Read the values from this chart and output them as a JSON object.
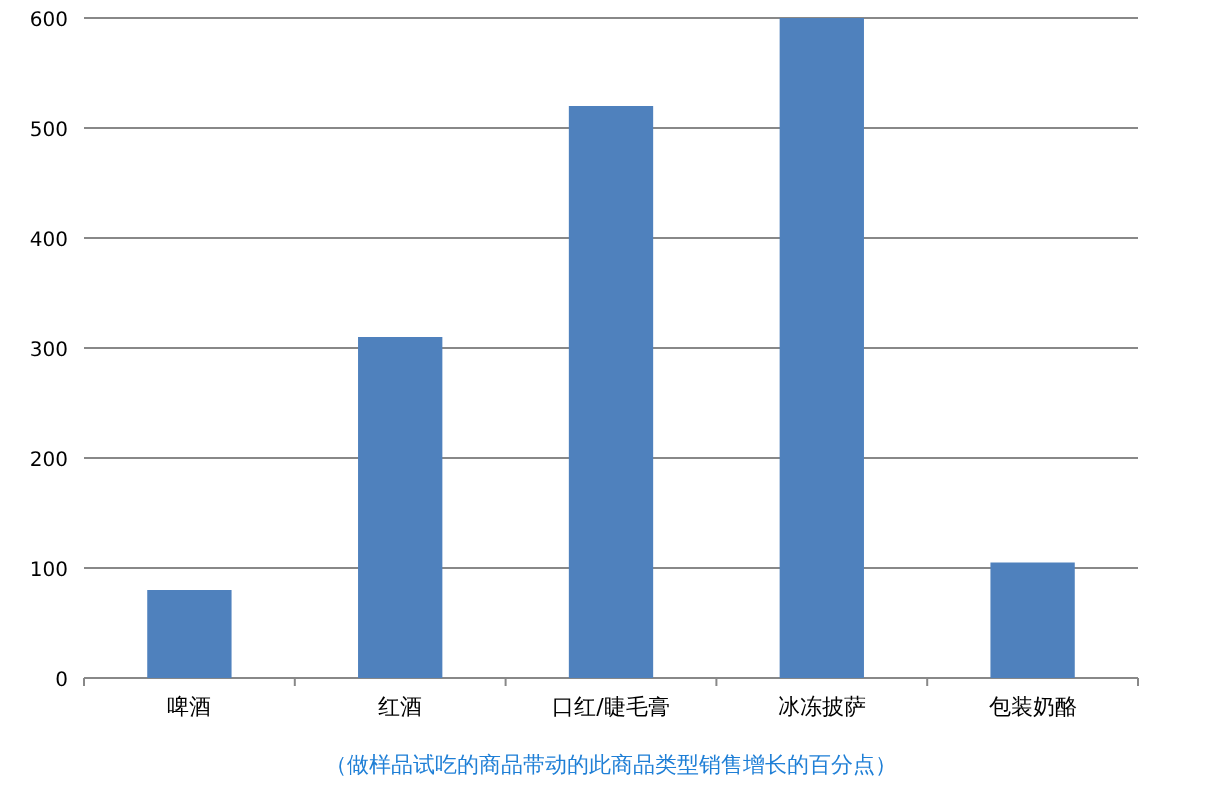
{
  "chart_data": {
    "type": "bar",
    "categories": [
      "啤酒",
      "红酒",
      "口红/睫毛膏",
      "冰冻披萨",
      "包装奶酪"
    ],
    "values": [
      80,
      310,
      520,
      600,
      105
    ],
    "color": "#4f81bd",
    "ylim": [
      0,
      600
    ],
    "yticks": [
      0,
      100,
      200,
      300,
      400,
      500,
      600
    ],
    "grid": "y",
    "xlabel": "（做样品试吃的商品带动的此商品类型销售增长的百分点）"
  }
}
